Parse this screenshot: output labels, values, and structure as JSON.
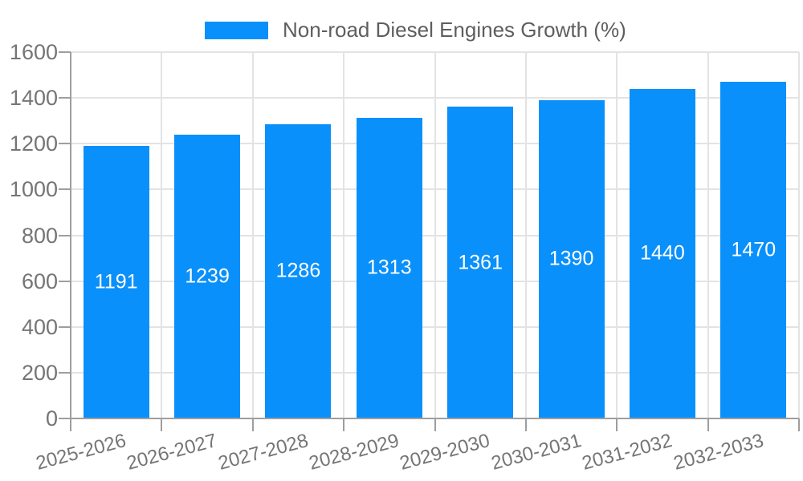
{
  "legend": {
    "label": "Non-road Diesel Engines Growth (%)"
  },
  "chart_data": {
    "type": "bar",
    "title": "",
    "xlabel": "",
    "ylabel": "",
    "series_name": "Non-road Diesel Engines Growth (%)",
    "categories": [
      "2025-2026",
      "2026-2027",
      "2027-2028",
      "2028-2029",
      "2029-2030",
      "2030-2031",
      "2031-2032",
      "2032-2033"
    ],
    "values": [
      1191,
      1239,
      1286,
      1313,
      1361,
      1390,
      1440,
      1470
    ],
    "ylim": [
      0,
      1600
    ],
    "yticks": [
      0,
      200,
      400,
      600,
      800,
      1000,
      1200,
      1400,
      1600
    ],
    "grid": true,
    "legend_position": "top",
    "bar_value_labels": "inside-center",
    "x_label_rotation_deg": -15,
    "colors": {
      "bar": "#0A90FA",
      "value_label": "#FFFFFF",
      "grid_line": "#E3E3E3",
      "axis_line": "#9E9E9E",
      "tick_label": "#757575",
      "legend_text": "#5E5E5E",
      "background": "#FFFFFF"
    }
  }
}
